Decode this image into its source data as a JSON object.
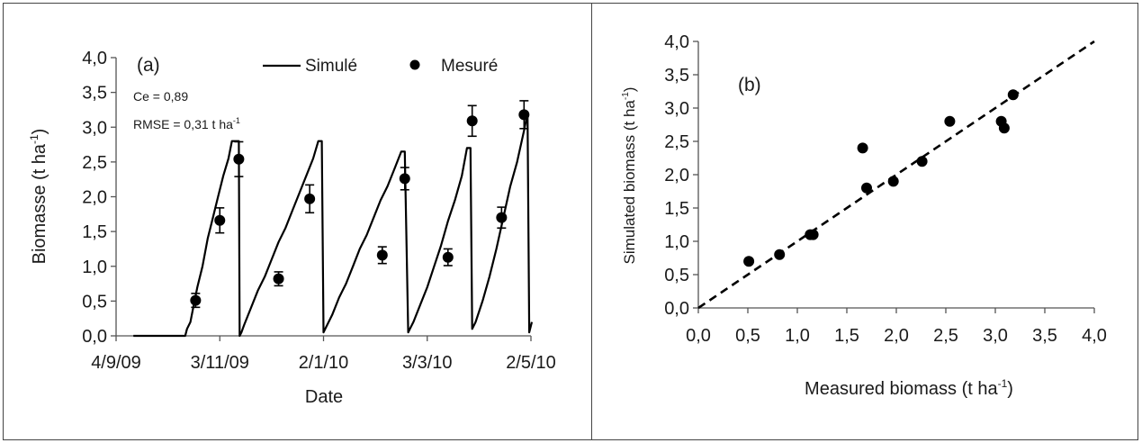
{
  "chart_data": [
    {
      "type": "line",
      "panel_label": "(a)",
      "xlabel": "Date",
      "ylabel": "Biomasse (t ha",
      "ylabel_sup": "-1",
      "ylabel_close": ")",
      "x_ticks": [
        "4/9/09",
        "3/11/09",
        "2/1/10",
        "3/3/10",
        "2/5/10"
      ],
      "x_tick_days": [
        0,
        60,
        120,
        180,
        240
      ],
      "xlim_days": [
        0,
        240
      ],
      "y_ticks": [
        "0,0",
        "0,5",
        "1,0",
        "1,5",
        "2,0",
        "2,5",
        "3,0",
        "3,5",
        "4,0"
      ],
      "ylim": [
        0,
        4
      ],
      "grid": false,
      "legend": {
        "position": "top-right",
        "simulated": "Simulé",
        "measured": "Mesuré"
      },
      "stats": {
        "ce": "Ce = 0,89",
        "rmse": "RMSE = 0,31 t ha",
        "rmse_sup": "-1"
      },
      "series": [
        {
          "name": "Simulé",
          "style": "line",
          "x_days": [
            10,
            40,
            41,
            43,
            45,
            47,
            50,
            53,
            56,
            59,
            62,
            65,
            67,
            69,
            70,
            71,
            71.5,
            72.5,
            74,
            78,
            82,
            86,
            90,
            94,
            98,
            102,
            106,
            110,
            114,
            117,
            119,
            120,
            121,
            125,
            129,
            133,
            137,
            141,
            145,
            149,
            153,
            157,
            161,
            165,
            167,
            169,
            170,
            172,
            176,
            180,
            184,
            188,
            192,
            196,
            200,
            203,
            205,
            206,
            208,
            212,
            216,
            220,
            224,
            228,
            232,
            236,
            238,
            239,
            240.5
          ],
          "values": [
            0,
            0,
            0.1,
            0.2,
            0.45,
            0.7,
            1.0,
            1.4,
            1.7,
            2.0,
            2.3,
            2.55,
            2.8,
            2.8,
            2.8,
            2.8,
            0,
            0.05,
            0.15,
            0.4,
            0.65,
            0.85,
            1.1,
            1.35,
            1.55,
            1.8,
            2.05,
            2.3,
            2.55,
            2.8,
            2.8,
            0.05,
            0.1,
            0.3,
            0.55,
            0.75,
            1.0,
            1.25,
            1.45,
            1.7,
            1.95,
            2.15,
            2.4,
            2.65,
            2.65,
            0.05,
            0.1,
            0.2,
            0.45,
            0.7,
            1.0,
            1.3,
            1.65,
            1.95,
            2.3,
            2.7,
            2.7,
            0.1,
            0.2,
            0.5,
            0.85,
            1.25,
            1.7,
            2.15,
            2.5,
            2.95,
            3.2,
            0.05,
            0.2
          ]
        },
        {
          "name": "Mesuré",
          "style": "points",
          "x_days": [
            46,
            60,
            71,
            94,
            112,
            154,
            167,
            192,
            206,
            223,
            236
          ],
          "values": [
            0.51,
            1.66,
            2.54,
            0.82,
            1.97,
            1.16,
            2.26,
            1.13,
            3.09,
            1.7,
            3.18
          ],
          "errors": [
            0.1,
            0.18,
            0.25,
            0.1,
            0.2,
            0.12,
            0.16,
            0.12,
            0.22,
            0.15,
            0.2
          ]
        }
      ]
    },
    {
      "type": "scatter",
      "panel_label": "(b)",
      "xlabel": "Measured biomass (t ha",
      "xlabel_sup": "-1",
      "xlabel_close": ")",
      "ylabel": "Simulated biomass  (t ha",
      "ylabel_sup": "-1",
      "ylabel_close": ")",
      "x_ticks": [
        "0,0",
        "0,5",
        "1,0",
        "1,5",
        "2,0",
        "2,5",
        "3,0",
        "3,5",
        "4,0"
      ],
      "y_ticks": [
        "0,0",
        "0,5",
        "1,0",
        "1,5",
        "2,0",
        "2,5",
        "3,0",
        "3,5",
        "4,0"
      ],
      "xlim": [
        0,
        4
      ],
      "ylim": [
        0,
        4
      ],
      "grid": false,
      "reference_line": {
        "style": "dashed",
        "x": [
          0,
          4
        ],
        "y": [
          0,
          4
        ]
      },
      "points": {
        "x": [
          0.51,
          0.82,
          1.13,
          1.16,
          1.66,
          1.7,
          1.97,
          2.26,
          2.54,
          3.06,
          3.09,
          3.18
        ],
        "y": [
          0.7,
          0.8,
          1.1,
          1.1,
          2.4,
          1.8,
          1.9,
          2.2,
          2.8,
          2.8,
          2.7,
          3.2
        ]
      }
    }
  ]
}
